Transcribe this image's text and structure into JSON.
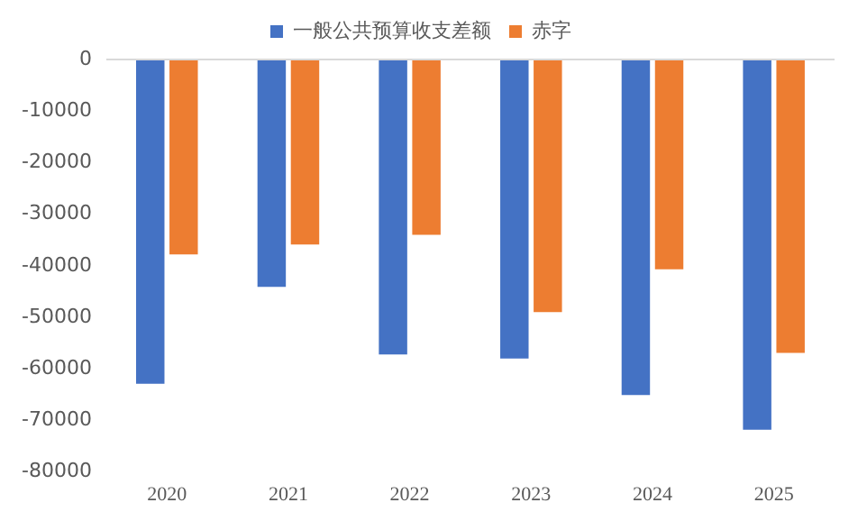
{
  "chart_data": {
    "type": "bar",
    "categories": [
      "2020",
      "2021",
      "2022",
      "2023",
      "2024",
      "2025"
    ],
    "series": [
      {
        "name": "一般公共预算收支差额",
        "color": "#4472c4",
        "values": [
          -62900,
          -44100,
          -57200,
          -58000,
          -65100,
          -71800
        ]
      },
      {
        "name": "赤字",
        "color": "#ed7d31",
        "values": [
          -37800,
          -35900,
          -34000,
          -49000,
          -40700,
          -56900
        ]
      }
    ],
    "ylim": [
      -80000,
      0
    ],
    "yticks": [
      0,
      -10000,
      -20000,
      -30000,
      -40000,
      -50000,
      -60000,
      -70000,
      -80000
    ],
    "grid": false,
    "legend": "top"
  }
}
